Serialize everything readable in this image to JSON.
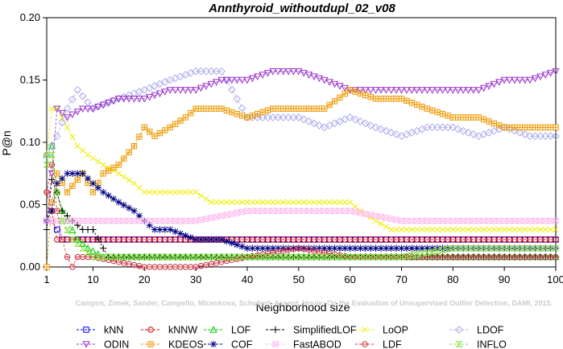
{
  "chart_data": {
    "type": "line",
    "title": "Annthyroid_withoutdupl_02_v08",
    "xlabel": "Neighborhood size",
    "ylabel": "P@n",
    "xlim": [
      1,
      100
    ],
    "ylim": [
      0,
      0.2
    ],
    "xticks": [
      1,
      10,
      20,
      30,
      40,
      50,
      60,
      70,
      80,
      90,
      100
    ],
    "yticks": [
      0.0,
      0.05,
      0.1,
      0.15,
      0.2
    ],
    "ytick_labels": [
      "0.00",
      "0.05",
      "0.10",
      "0.15",
      "0.20"
    ],
    "grid": false,
    "legend_placement": "bottom",
    "watermark": "Campos, Zimek, Sander, Campello, Micenkova, Schubert, Assent, Houle: On the Evaluation of Unsupervised Outlier Detection, DAMI, 2015.",
    "series": [
      {
        "name": "kNN",
        "color": "#0000ee",
        "marker": "square",
        "points": [
          [
            1,
            0.037
          ],
          [
            2,
            0.037
          ],
          [
            3,
            0.03
          ],
          [
            4,
            0.022
          ],
          [
            100,
            0.022
          ]
        ]
      },
      {
        "name": "kNNW",
        "color": "#dd0000",
        "marker": "circle",
        "points": [
          [
            1,
            0.06
          ],
          [
            2,
            0.045
          ],
          [
            3,
            0.022
          ],
          [
            5,
            0.022
          ],
          [
            100,
            0.022
          ]
        ]
      },
      {
        "name": "LOF",
        "color": "#00cc00",
        "marker": "triangle-up",
        "points": [
          [
            1,
            0.09
          ],
          [
            2,
            0.097
          ],
          [
            3,
            0.06
          ],
          [
            4,
            0.045
          ],
          [
            5,
            0.037
          ],
          [
            7,
            0.022
          ],
          [
            9,
            0.015
          ],
          [
            12,
            0.008
          ],
          [
            100,
            0.008
          ]
        ]
      },
      {
        "name": "SimplifiedLOF",
        "color": "#000000",
        "marker": "plus",
        "points": [
          [
            1,
            0.03
          ],
          [
            2,
            0.07
          ],
          [
            3,
            0.06
          ],
          [
            4,
            0.045
          ],
          [
            6,
            0.037
          ],
          [
            8,
            0.03
          ],
          [
            10,
            0.03
          ],
          [
            12,
            0.015
          ],
          [
            13,
            0.008
          ],
          [
            30,
            0.008
          ],
          [
            35,
            0.008
          ],
          [
            100,
            0.008
          ]
        ]
      },
      {
        "name": "LoOP",
        "color": "#eeee00",
        "marker": "x",
        "points": [
          [
            1,
            0.09
          ],
          [
            2,
            0.127
          ],
          [
            3,
            0.127
          ],
          [
            5,
            0.112
          ],
          [
            7,
            0.097
          ],
          [
            9,
            0.09
          ],
          [
            12,
            0.082
          ],
          [
            15,
            0.075
          ],
          [
            18,
            0.067
          ],
          [
            20,
            0.06
          ],
          [
            30,
            0.06
          ],
          [
            33,
            0.052
          ],
          [
            45,
            0.052
          ],
          [
            60,
            0.052
          ],
          [
            62,
            0.045
          ],
          [
            65,
            0.037
          ],
          [
            68,
            0.03
          ],
          [
            70,
            0.03
          ],
          [
            100,
            0.03
          ]
        ]
      },
      {
        "name": "LDOF",
        "color": "#aaaaee",
        "marker": "diamond",
        "points": [
          [
            1,
            0.09
          ],
          [
            3,
            0.105
          ],
          [
            5,
            0.127
          ],
          [
            7,
            0.142
          ],
          [
            10,
            0.127
          ],
          [
            15,
            0.135
          ],
          [
            20,
            0.142
          ],
          [
            25,
            0.15
          ],
          [
            30,
            0.157
          ],
          [
            35,
            0.157
          ],
          [
            40,
            0.12
          ],
          [
            50,
            0.12
          ],
          [
            55,
            0.112
          ],
          [
            60,
            0.12
          ],
          [
            65,
            0.112
          ],
          [
            70,
            0.105
          ],
          [
            75,
            0.112
          ],
          [
            80,
            0.112
          ],
          [
            85,
            0.105
          ],
          [
            90,
            0.112
          ],
          [
            95,
            0.105
          ],
          [
            100,
            0.105
          ]
        ]
      },
      {
        "name": "ODIN",
        "color": "#9933cc",
        "marker": "triangle-down",
        "points": [
          [
            1,
            0.037
          ],
          [
            2,
            0.075
          ],
          [
            3,
            0.127
          ],
          [
            5,
            0.12
          ],
          [
            8,
            0.127
          ],
          [
            10,
            0.127
          ],
          [
            15,
            0.135
          ],
          [
            20,
            0.135
          ],
          [
            25,
            0.142
          ],
          [
            30,
            0.142
          ],
          [
            35,
            0.15
          ],
          [
            40,
            0.15
          ],
          [
            45,
            0.157
          ],
          [
            50,
            0.157
          ],
          [
            55,
            0.15
          ],
          [
            60,
            0.142
          ],
          [
            65,
            0.142
          ],
          [
            70,
            0.142
          ],
          [
            75,
            0.142
          ],
          [
            80,
            0.142
          ],
          [
            85,
            0.142
          ],
          [
            90,
            0.15
          ],
          [
            95,
            0.15
          ],
          [
            100,
            0.157
          ]
        ]
      },
      {
        "name": "KDEOS",
        "color": "#ee9900",
        "marker": "boxed-square",
        "points": [
          [
            1,
            0.0
          ],
          [
            2,
            0.052
          ],
          [
            3,
            0.075
          ],
          [
            5,
            0.06
          ],
          [
            8,
            0.075
          ],
          [
            10,
            0.06
          ],
          [
            12,
            0.075
          ],
          [
            15,
            0.082
          ],
          [
            18,
            0.097
          ],
          [
            20,
            0.112
          ],
          [
            22,
            0.105
          ],
          [
            25,
            0.112
          ],
          [
            28,
            0.12
          ],
          [
            30,
            0.127
          ],
          [
            35,
            0.127
          ],
          [
            40,
            0.12
          ],
          [
            45,
            0.127
          ],
          [
            50,
            0.127
          ],
          [
            55,
            0.127
          ],
          [
            60,
            0.142
          ],
          [
            65,
            0.135
          ],
          [
            70,
            0.135
          ],
          [
            75,
            0.127
          ],
          [
            80,
            0.12
          ],
          [
            85,
            0.12
          ],
          [
            90,
            0.112
          ],
          [
            95,
            0.112
          ],
          [
            100,
            0.112
          ]
        ]
      },
      {
        "name": "COF",
        "color": "#000080",
        "marker": "asterisk",
        "points": [
          [
            1,
            0.037
          ],
          [
            2,
            0.045
          ],
          [
            3,
            0.067
          ],
          [
            5,
            0.075
          ],
          [
            8,
            0.075
          ],
          [
            10,
            0.067
          ],
          [
            12,
            0.06
          ],
          [
            15,
            0.052
          ],
          [
            18,
            0.045
          ],
          [
            20,
            0.037
          ],
          [
            22,
            0.03
          ],
          [
            25,
            0.03
          ],
          [
            30,
            0.022
          ],
          [
            35,
            0.022
          ],
          [
            40,
            0.015
          ],
          [
            50,
            0.015
          ],
          [
            60,
            0.015
          ],
          [
            70,
            0.015
          ],
          [
            80,
            0.015
          ],
          [
            90,
            0.015
          ],
          [
            100,
            0.015
          ]
        ]
      },
      {
        "name": "FastABOD",
        "color": "#ffbbee",
        "marker": "boxed-x",
        "points": [
          [
            1,
            0.037
          ],
          [
            3,
            0.037
          ],
          [
            5,
            0.037
          ],
          [
            10,
            0.037
          ],
          [
            20,
            0.037
          ],
          [
            30,
            0.037
          ],
          [
            40,
            0.045
          ],
          [
            50,
            0.045
          ],
          [
            60,
            0.045
          ],
          [
            70,
            0.037
          ],
          [
            80,
            0.037
          ],
          [
            90,
            0.037
          ],
          [
            100,
            0.037
          ]
        ]
      },
      {
        "name": "LDF",
        "color": "#cc3344",
        "marker": "circle-dot",
        "points": [
          [
            1,
            0.06
          ],
          [
            2,
            0.082
          ],
          [
            3,
            0.045
          ],
          [
            4,
            0.022
          ],
          [
            5,
            0.008
          ],
          [
            6,
            0.0
          ],
          [
            7,
            0.008
          ],
          [
            10,
            0.008
          ],
          [
            20,
            0.0
          ],
          [
            30,
            0.0
          ],
          [
            40,
            0.008
          ],
          [
            50,
            0.015
          ],
          [
            60,
            0.008
          ],
          [
            70,
            0.008
          ],
          [
            80,
            0.008
          ],
          [
            90,
            0.008
          ],
          [
            100,
            0.008
          ]
        ]
      },
      {
        "name": "INFLO",
        "color": "#88dd44",
        "marker": "hourglass",
        "points": [
          [
            1,
            0.082
          ],
          [
            2,
            0.09
          ],
          [
            3,
            0.06
          ],
          [
            4,
            0.037
          ],
          [
            6,
            0.022
          ],
          [
            8,
            0.015
          ],
          [
            10,
            0.008
          ],
          [
            15,
            0.008
          ],
          [
            20,
            0.008
          ],
          [
            30,
            0.008
          ],
          [
            40,
            0.008
          ],
          [
            50,
            0.008
          ],
          [
            60,
            0.008
          ],
          [
            70,
            0.008
          ],
          [
            80,
            0.015
          ],
          [
            90,
            0.015
          ],
          [
            100,
            0.015
          ]
        ]
      }
    ]
  }
}
